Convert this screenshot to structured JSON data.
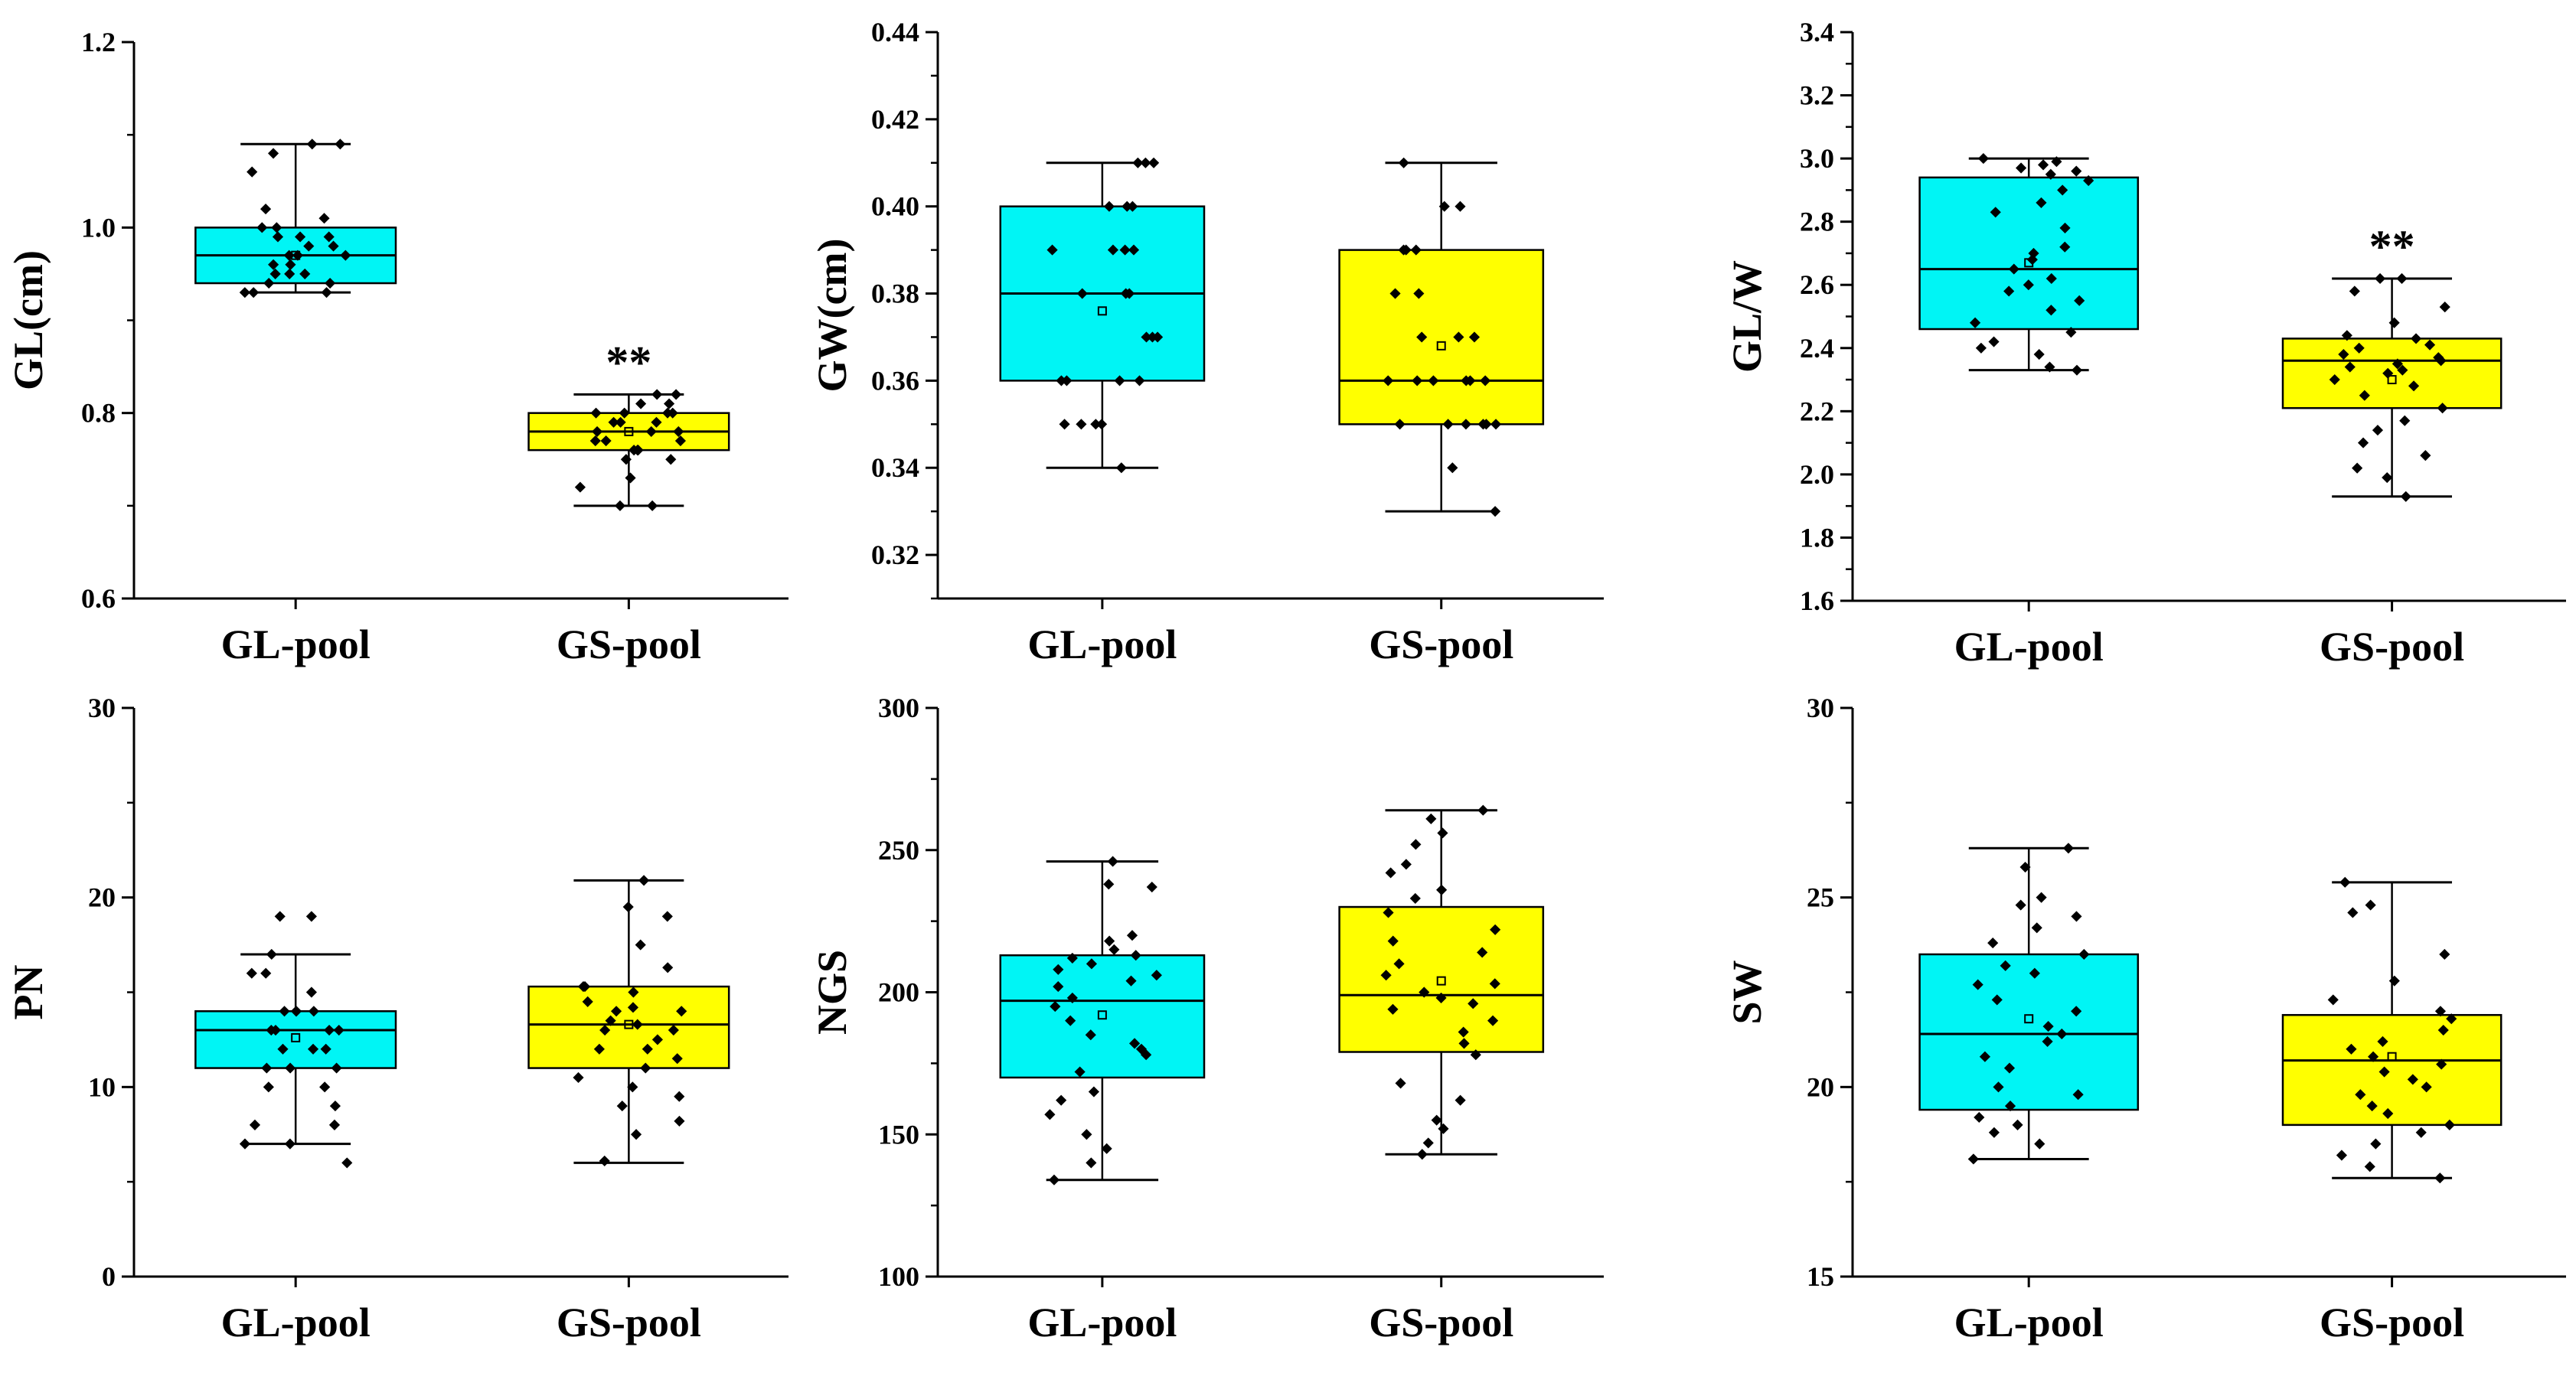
{
  "chart_data": [
    {
      "type": "box",
      "ylabel": "GL(cm)",
      "ylim": [
        0.6,
        1.2
      ],
      "yticks": [
        "0.6",
        "0.8",
        "1.0",
        "1.2"
      ],
      "ytick_values": [
        0.6,
        0.8,
        1.0,
        1.2
      ],
      "minor_step": 0.1,
      "categories": [
        "GL-pool",
        "GS-pool"
      ],
      "colors": [
        "#00f5f5",
        "#ffff00"
      ],
      "boxes": [
        {
          "min": 0.93,
          "q1": 0.94,
          "median": 0.97,
          "q3": 1.0,
          "max": 1.09,
          "mean": 0.97,
          "points": [
            1.09,
            1.09,
            1.08,
            1.06,
            1.02,
            1.01,
            1.0,
            1.0,
            0.99,
            0.99,
            0.98,
            0.98,
            0.97,
            0.97,
            0.96,
            0.96,
            0.95,
            0.95,
            0.94,
            0.94,
            0.93,
            0.93,
            0.93,
            0.95,
            0.97,
            0.99
          ]
        },
        {
          "min": 0.7,
          "q1": 0.76,
          "median": 0.78,
          "q3": 0.8,
          "max": 0.82,
          "mean": 0.78,
          "points": [
            0.82,
            0.82,
            0.81,
            0.81,
            0.8,
            0.8,
            0.8,
            0.79,
            0.79,
            0.78,
            0.78,
            0.78,
            0.77,
            0.77,
            0.77,
            0.76,
            0.76,
            0.76,
            0.75,
            0.75,
            0.73,
            0.72,
            0.7,
            0.7,
            0.79,
            0.8
          ]
        }
      ],
      "annotation": {
        "text": "**",
        "category": 1
      }
    },
    {
      "type": "box",
      "ylabel": "GW(cm)",
      "ylim": [
        0.31,
        0.44
      ],
      "yticks": [
        "0.32",
        "0.34",
        "0.36",
        "0.38",
        "0.40",
        "0.42",
        "0.44"
      ],
      "ytick_values": [
        0.32,
        0.34,
        0.36,
        0.38,
        0.4,
        0.42,
        0.44
      ],
      "minor_step": 0.01,
      "categories": [
        "GL-pool",
        "GS-pool"
      ],
      "colors": [
        "#00f5f5",
        "#ffff00"
      ],
      "boxes": [
        {
          "min": 0.34,
          "q1": 0.36,
          "median": 0.38,
          "q3": 0.4,
          "max": 0.41,
          "mean": 0.376,
          "points": [
            0.41,
            0.41,
            0.41,
            0.4,
            0.4,
            0.4,
            0.39,
            0.39,
            0.39,
            0.39,
            0.38,
            0.38,
            0.38,
            0.37,
            0.37,
            0.37,
            0.36,
            0.36,
            0.36,
            0.36,
            0.35,
            0.35,
            0.35,
            0.35,
            0.34
          ]
        },
        {
          "min": 0.33,
          "q1": 0.35,
          "median": 0.36,
          "q3": 0.39,
          "max": 0.41,
          "mean": 0.368,
          "points": [
            0.41,
            0.4,
            0.4,
            0.39,
            0.39,
            0.39,
            0.38,
            0.38,
            0.37,
            0.37,
            0.37,
            0.36,
            0.36,
            0.36,
            0.36,
            0.36,
            0.36,
            0.35,
            0.35,
            0.35,
            0.35,
            0.35,
            0.35,
            0.34,
            0.33
          ]
        }
      ]
    },
    {
      "type": "box",
      "ylabel": "GL/W",
      "ylim": [
        1.6,
        3.4
      ],
      "yticks": [
        "1.6",
        "1.8",
        "2.0",
        "2.2",
        "2.4",
        "2.6",
        "2.8",
        "3.0",
        "3.2",
        "3.4"
      ],
      "ytick_values": [
        1.6,
        1.8,
        2.0,
        2.2,
        2.4,
        2.6,
        2.8,
        3.0,
        3.2,
        3.4
      ],
      "minor_step": 0.1,
      "categories": [
        "GL-pool",
        "GS-pool"
      ],
      "colors": [
        "#00f5f5",
        "#ffff00"
      ],
      "boxes": [
        {
          "min": 2.33,
          "q1": 2.46,
          "median": 2.65,
          "q3": 2.94,
          "max": 3.0,
          "mean": 2.67,
          "points": [
            3.0,
            2.99,
            2.98,
            2.97,
            2.96,
            2.95,
            2.93,
            2.9,
            2.86,
            2.83,
            2.78,
            2.72,
            2.68,
            2.65,
            2.62,
            2.58,
            2.55,
            2.52,
            2.48,
            2.45,
            2.42,
            2.4,
            2.38,
            2.34,
            2.33,
            2.7,
            2.6
          ]
        },
        {
          "min": 1.93,
          "q1": 2.21,
          "median": 2.36,
          "q3": 2.43,
          "max": 2.62,
          "mean": 2.3,
          "points": [
            2.62,
            2.62,
            2.58,
            2.53,
            2.48,
            2.44,
            2.43,
            2.41,
            2.4,
            2.38,
            2.37,
            2.36,
            2.35,
            2.34,
            2.33,
            2.32,
            2.3,
            2.28,
            2.25,
            2.21,
            2.17,
            2.14,
            2.1,
            2.06,
            2.02,
            1.99,
            1.93
          ]
        }
      ],
      "annotation": {
        "text": "**",
        "category": 1
      }
    },
    {
      "type": "box",
      "ylabel": "PN",
      "ylim": [
        0,
        30
      ],
      "yticks": [
        "0",
        "10",
        "20",
        "30"
      ],
      "ytick_values": [
        0,
        10,
        20,
        30
      ],
      "minor_step": 5,
      "categories": [
        "GL-pool",
        "GS-pool"
      ],
      "colors": [
        "#00f5f5",
        "#ffff00"
      ],
      "boxes": [
        {
          "min": 7,
          "q1": 11,
          "median": 13,
          "q3": 14,
          "max": 17,
          "mean": 12.6,
          "points": [
            19,
            19,
            17,
            16,
            16,
            15,
            14,
            14,
            14,
            14,
            13,
            13,
            13,
            13,
            12,
            12,
            12,
            11,
            11,
            11,
            10,
            10,
            9,
            8,
            8,
            7,
            7,
            6
          ]
        },
        {
          "min": 6,
          "q1": 11,
          "median": 13.3,
          "q3": 15.3,
          "max": 20.9,
          "mean": 13.3,
          "points": [
            20.9,
            19.5,
            19,
            17.5,
            16.3,
            15.3,
            15.3,
            15,
            14.5,
            14.2,
            14,
            14,
            13.5,
            13.3,
            13,
            13,
            12.5,
            12,
            12,
            11.5,
            11,
            10.5,
            10,
            9.5,
            9,
            8.2,
            7.5,
            6.1
          ]
        }
      ]
    },
    {
      "type": "box",
      "ylabel": "NGS",
      "ylim": [
        100,
        300
      ],
      "yticks": [
        "100",
        "150",
        "200",
        "250",
        "300"
      ],
      "ytick_values": [
        100,
        150,
        200,
        250,
        300
      ],
      "minor_step": 25,
      "categories": [
        "GL-pool",
        "GS-pool"
      ],
      "colors": [
        "#00f5f5",
        "#ffff00"
      ],
      "boxes": [
        {
          "min": 134,
          "q1": 170,
          "median": 197,
          "q3": 213,
          "max": 246,
          "mean": 192,
          "points": [
            246,
            238,
            237,
            220,
            218,
            215,
            213,
            212,
            210,
            208,
            206,
            204,
            202,
            198,
            195,
            190,
            185,
            182,
            180,
            178,
            172,
            165,
            162,
            157,
            150,
            145,
            140,
            134
          ]
        },
        {
          "min": 143,
          "q1": 179,
          "median": 199,
          "q3": 230,
          "max": 264,
          "mean": 204,
          "points": [
            264,
            261,
            256,
            252,
            245,
            242,
            236,
            233,
            228,
            222,
            218,
            214,
            210,
            206,
            203,
            200,
            198,
            196,
            194,
            190,
            186,
            182,
            178,
            168,
            162,
            155,
            152,
            147,
            143
          ]
        }
      ]
    },
    {
      "type": "box",
      "ylabel": "SW",
      "ylim": [
        15,
        30
      ],
      "yticks": [
        "15",
        "20",
        "25",
        "30"
      ],
      "ytick_values": [
        15,
        20,
        25,
        30
      ],
      "minor_step": 2.5,
      "categories": [
        "GL-pool",
        "GS-pool"
      ],
      "colors": [
        "#00f5f5",
        "#ffff00"
      ],
      "boxes": [
        {
          "min": 18.1,
          "q1": 19.4,
          "median": 21.4,
          "q3": 23.5,
          "max": 26.3,
          "mean": 21.8,
          "points": [
            26.3,
            25.8,
            25.0,
            24.8,
            24.5,
            24.2,
            23.8,
            23.5,
            23.2,
            23.0,
            22.7,
            22.3,
            22.0,
            21.6,
            21.4,
            21.2,
            20.8,
            20.5,
            20.0,
            19.8,
            19.5,
            19.2,
            19.0,
            18.8,
            18.5,
            18.1
          ]
        },
        {
          "min": 17.6,
          "q1": 19.0,
          "median": 20.7,
          "q3": 21.9,
          "max": 25.4,
          "mean": 20.8,
          "points": [
            25.4,
            24.8,
            24.6,
            23.5,
            22.8,
            22.3,
            22.0,
            21.8,
            21.5,
            21.2,
            21.0,
            20.8,
            20.6,
            20.4,
            20.2,
            20.0,
            19.8,
            19.5,
            19.3,
            19.0,
            18.8,
            18.5,
            18.2,
            17.9,
            17.6
          ]
        }
      ]
    }
  ]
}
